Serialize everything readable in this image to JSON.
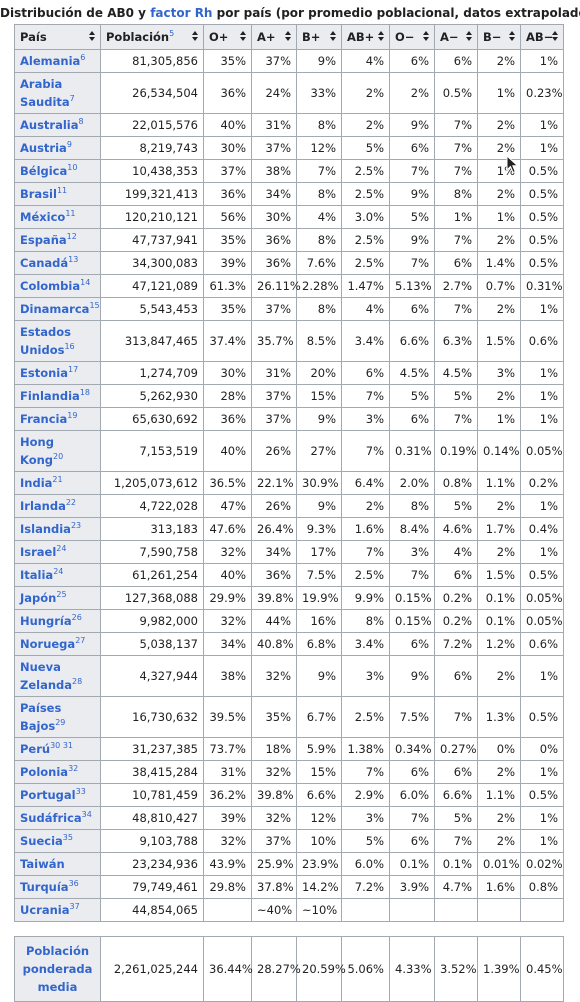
{
  "caption": {
    "prefix": "Distribución de AB0 y",
    "link": "factor Rh",
    "suffix": "por país (por promedio poblacional, datos extrapolados)"
  },
  "headers": [
    "País",
    "Población",
    "O+",
    "A+",
    "B+",
    "AB+",
    "O−",
    "A−",
    "B−",
    "AB−"
  ],
  "header_ref": "5",
  "rows": [
    {
      "country": "Alemania",
      "ref": "6",
      "pop": "81,305,856",
      "v": [
        "35%",
        "37%",
        "9%",
        "4%",
        "6%",
        "6%",
        "2%",
        "1%"
      ]
    },
    {
      "country": "Arabia Saudita",
      "ref": "7",
      "pop": "26,534,504",
      "v": [
        "36%",
        "24%",
        "33%",
        "2%",
        "2%",
        "0.5%",
        "1%",
        "0.23%"
      ]
    },
    {
      "country": "Australia",
      "ref": "8",
      "pop": "22,015,576",
      "v": [
        "40%",
        "31%",
        "8%",
        "2%",
        "9%",
        "7%",
        "2%",
        "1%"
      ]
    },
    {
      "country": "Austria",
      "ref": "9",
      "pop": "8,219,743",
      "v": [
        "30%",
        "37%",
        "12%",
        "5%",
        "6%",
        "7%",
        "2%",
        "1%"
      ]
    },
    {
      "country": "Bélgica",
      "ref": "10",
      "pop": "10,438,353",
      "v": [
        "37%",
        "38%",
        "7%",
        "2.5%",
        "7%",
        "7%",
        "1%",
        "0.5%"
      ]
    },
    {
      "country": "Brasil",
      "ref": "11",
      "pop": "199,321,413",
      "v": [
        "36%",
        "34%",
        "8%",
        "2.5%",
        "9%",
        "8%",
        "2%",
        "0.5%"
      ]
    },
    {
      "country": "México",
      "ref": "11",
      "pop": "120,210,121",
      "v": [
        "56%",
        "30%",
        "4%",
        "3.0%",
        "5%",
        "1%",
        "1%",
        "0.5%"
      ]
    },
    {
      "country": "España",
      "ref": "12",
      "pop": "47,737,941",
      "v": [
        "35%",
        "36%",
        "8%",
        "2.5%",
        "9%",
        "7%",
        "2%",
        "0.5%"
      ]
    },
    {
      "country": "Canadá",
      "ref": "13",
      "pop": "34,300,083",
      "v": [
        "39%",
        "36%",
        "7.6%",
        "2.5%",
        "7%",
        "6%",
        "1.4%",
        "0.5%"
      ]
    },
    {
      "country": "Colombia",
      "ref": "14",
      "pop": "47,121,089",
      "v": [
        "61.3%",
        "26.11%",
        "2.28%",
        "1.47%",
        "5.13%",
        "2.7%",
        "0.7%",
        "0.31%"
      ]
    },
    {
      "country": "Dinamarca",
      "ref": "15",
      "pop": "5,543,453",
      "v": [
        "35%",
        "37%",
        "8%",
        "4%",
        "6%",
        "7%",
        "2%",
        "1%"
      ]
    },
    {
      "country": "Estados Unidos",
      "ref": "16",
      "pop": "313,847,465",
      "v": [
        "37.4%",
        "35.7%",
        "8.5%",
        "3.4%",
        "6.6%",
        "6.3%",
        "1.5%",
        "0.6%"
      ]
    },
    {
      "country": "Estonia",
      "ref": "17",
      "pop": "1,274,709",
      "v": [
        "30%",
        "31%",
        "20%",
        "6%",
        "4.5%",
        "4.5%",
        "3%",
        "1%"
      ]
    },
    {
      "country": "Finlandia",
      "ref": "18",
      "pop": "5,262,930",
      "v": [
        "28%",
        "37%",
        "15%",
        "7%",
        "5%",
        "5%",
        "2%",
        "1%"
      ]
    },
    {
      "country": "Francia",
      "ref": "19",
      "pop": "65,630,692",
      "v": [
        "36%",
        "37%",
        "9%",
        "3%",
        "6%",
        "7%",
        "1%",
        "1%"
      ]
    },
    {
      "country": "Hong Kong",
      "ref": "20",
      "pop": "7,153,519",
      "v": [
        "40%",
        "26%",
        "27%",
        "7%",
        "0.31%",
        "0.19%",
        "0.14%",
        "0.05%"
      ]
    },
    {
      "country": "India",
      "ref": "21",
      "pop": "1,205,073,612",
      "v": [
        "36.5%",
        "22.1%",
        "30.9%",
        "6.4%",
        "2.0%",
        "0.8%",
        "1.1%",
        "0.2%"
      ]
    },
    {
      "country": "Irlanda",
      "ref": "22",
      "pop": "4,722,028",
      "v": [
        "47%",
        "26%",
        "9%",
        "2%",
        "8%",
        "5%",
        "2%",
        "1%"
      ]
    },
    {
      "country": "Islandia",
      "ref": "23",
      "pop": "313,183",
      "v": [
        "47.6%",
        "26.4%",
        "9.3%",
        "1.6%",
        "8.4%",
        "4.6%",
        "1.7%",
        "0.4%"
      ]
    },
    {
      "country": "Israel",
      "ref": "24",
      "pop": "7,590,758",
      "v": [
        "32%",
        "34%",
        "17%",
        "7%",
        "3%",
        "4%",
        "2%",
        "1%"
      ]
    },
    {
      "country": "Italia",
      "ref": "24",
      "pop": "61,261,254",
      "v": [
        "40%",
        "36%",
        "7.5%",
        "2.5%",
        "7%",
        "6%",
        "1.5%",
        "0.5%"
      ]
    },
    {
      "country": "Japón",
      "ref": "25",
      "pop": "127,368,088",
      "v": [
        "29.9%",
        "39.8%",
        "19.9%",
        "9.9%",
        "0.15%",
        "0.2%",
        "0.1%",
        "0.05%"
      ]
    },
    {
      "country": "Hungría",
      "ref": "26",
      "pop": "9,982,000",
      "v": [
        "32%",
        "44%",
        "16%",
        "8%",
        "0.15%",
        "0.2%",
        "0.1%",
        "0.05%"
      ]
    },
    {
      "country": "Noruega",
      "ref": "27",
      "pop": "5,038,137",
      "v": [
        "34%",
        "40.8%",
        "6.8%",
        "3.4%",
        "6%",
        "7.2%",
        "1.2%",
        "0.6%"
      ]
    },
    {
      "country": "Nueva Zelanda",
      "ref": "28",
      "pop": "4,327,944",
      "v": [
        "38%",
        "32%",
        "9%",
        "3%",
        "9%",
        "6%",
        "2%",
        "1%"
      ]
    },
    {
      "country": "Países Bajos",
      "ref": "29",
      "pop": "16,730,632",
      "v": [
        "39.5%",
        "35%",
        "6.7%",
        "2.5%",
        "7.5%",
        "7%",
        "1.3%",
        "0.5%"
      ]
    },
    {
      "country": "Perú",
      "ref": "30  31",
      "pop": "31,237,385",
      "v": [
        "73.7%",
        "18%",
        "5.9%",
        "1.38%",
        "0.34%",
        "0.27%",
        "0%",
        "0%"
      ]
    },
    {
      "country": "Polonia",
      "ref": "32",
      "pop": "38,415,284",
      "v": [
        "31%",
        "32%",
        "15%",
        "7%",
        "6%",
        "6%",
        "2%",
        "1%"
      ]
    },
    {
      "country": "Portugal",
      "ref": "33",
      "pop": "10,781,459",
      "v": [
        "36.2%",
        "39.8%",
        "6.6%",
        "2.9%",
        "6.0%",
        "6.6%",
        "1.1%",
        "0.5%"
      ]
    },
    {
      "country": "Sudáfrica",
      "ref": "34",
      "pop": "48,810,427",
      "v": [
        "39%",
        "32%",
        "12%",
        "3%",
        "7%",
        "5%",
        "2%",
        "1%"
      ]
    },
    {
      "country": "Suecia",
      "ref": "35",
      "pop": "9,103,788",
      "v": [
        "32%",
        "37%",
        "10%",
        "5%",
        "6%",
        "7%",
        "2%",
        "1%"
      ]
    },
    {
      "country": "Taiwán",
      "ref": "",
      "pop": "23,234,936",
      "v": [
        "43.9%",
        "25.9%",
        "23.9%",
        "6.0%",
        "0.1%",
        "0.1%",
        "0.01%",
        "0.02%"
      ]
    },
    {
      "country": "Turquía",
      "ref": "36",
      "pop": "79,749,461",
      "v": [
        "29.8%",
        "37.8%",
        "14.2%",
        "7.2%",
        "3.9%",
        "4.7%",
        "1.6%",
        "0.8%"
      ]
    },
    {
      "country": "Ucrania",
      "ref": "37",
      "pop": "44,854,065",
      "v": [
        "",
        "~40%",
        "~10%",
        "",
        "",
        "",
        "",
        ""
      ]
    }
  ],
  "footer": {
    "label": "Población ponderada media",
    "pop": "2,261,025,244",
    "v": [
      "36.44%",
      "28.27%",
      "20.59%",
      "5.06%",
      "4.33%",
      "3.52%",
      "1.39%",
      "0.45%"
    ]
  }
}
